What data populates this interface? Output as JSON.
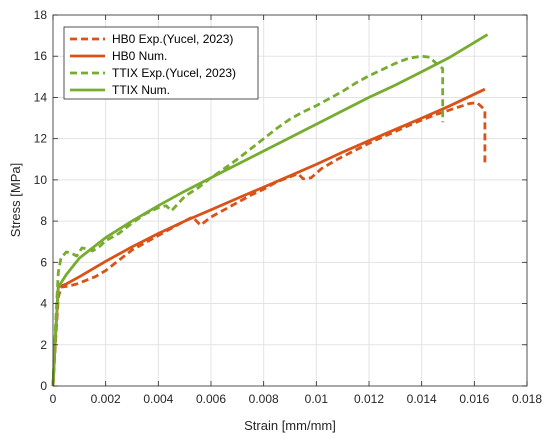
{
  "chart_data": {
    "type": "line",
    "xlabel": "Strain [mm/mm]",
    "ylabel": "Stress [MPa]",
    "xlim": [
      0,
      0.018
    ],
    "ylim": [
      0,
      18
    ],
    "xticks": [
      "0",
      "0.002",
      "0.004",
      "0.006",
      "0.008",
      "0.01",
      "0.012",
      "0.014",
      "0.016",
      "0.018"
    ],
    "yticks": [
      "0",
      "2",
      "4",
      "6",
      "8",
      "10",
      "12",
      "14",
      "16",
      "18"
    ],
    "grid": true,
    "legend_position": "top-left",
    "series": [
      {
        "name": "HB0 Exp.(Yucel, 2023)",
        "color": "#d95319",
        "style": "dashed",
        "points": [
          [
            0,
            0
          ],
          [
            0.0001,
            2.2
          ],
          [
            0.0002,
            4.3
          ],
          [
            0.0003,
            4.8
          ],
          [
            0.0006,
            4.85
          ],
          [
            0.0009,
            4.95
          ],
          [
            0.0012,
            5.1
          ],
          [
            0.0016,
            5.3
          ],
          [
            0.002,
            5.6
          ],
          [
            0.0025,
            6.1
          ],
          [
            0.003,
            6.6
          ],
          [
            0.0035,
            6.95
          ],
          [
            0.004,
            7.3
          ],
          [
            0.0045,
            7.65
          ],
          [
            0.005,
            8.0
          ],
          [
            0.0053,
            8.2
          ],
          [
            0.0056,
            7.8
          ],
          [
            0.006,
            8.2
          ],
          [
            0.0065,
            8.55
          ],
          [
            0.007,
            8.9
          ],
          [
            0.0075,
            9.25
          ],
          [
            0.008,
            9.55
          ],
          [
            0.0085,
            9.9
          ],
          [
            0.009,
            10.15
          ],
          [
            0.0093,
            10.3
          ],
          [
            0.0095,
            10.05
          ],
          [
            0.0098,
            10.1
          ],
          [
            0.0102,
            10.55
          ],
          [
            0.0108,
            11.0
          ],
          [
            0.0115,
            11.45
          ],
          [
            0.0122,
            11.9
          ],
          [
            0.013,
            12.35
          ],
          [
            0.0138,
            12.8
          ],
          [
            0.0145,
            13.15
          ],
          [
            0.0152,
            13.45
          ],
          [
            0.0158,
            13.7
          ],
          [
            0.0161,
            13.75
          ],
          [
            0.0164,
            13.4
          ],
          [
            0.0164,
            10.7
          ]
        ]
      },
      {
        "name": "HB0 Num.",
        "color": "#d95319",
        "style": "solid",
        "points": [
          [
            0,
            0
          ],
          [
            0.0001,
            2.5
          ],
          [
            0.0002,
            4.8
          ],
          [
            0.0005,
            4.95
          ],
          [
            0.001,
            5.3
          ],
          [
            0.002,
            6.05
          ],
          [
            0.003,
            6.75
          ],
          [
            0.004,
            7.4
          ],
          [
            0.005,
            8.0
          ],
          [
            0.006,
            8.55
          ],
          [
            0.007,
            9.1
          ],
          [
            0.008,
            9.65
          ],
          [
            0.009,
            10.2
          ],
          [
            0.01,
            10.75
          ],
          [
            0.011,
            11.35
          ],
          [
            0.012,
            11.9
          ],
          [
            0.013,
            12.45
          ],
          [
            0.014,
            13.0
          ],
          [
            0.015,
            13.55
          ],
          [
            0.0164,
            14.4
          ]
        ]
      },
      {
        "name": "TTIX Exp.(Yucel, 2023)",
        "color": "#77ac30",
        "style": "dashed",
        "points": [
          [
            0,
            0
          ],
          [
            0.0001,
            3.0
          ],
          [
            0.0002,
            5.5
          ],
          [
            0.0003,
            6.2
          ],
          [
            0.0005,
            6.5
          ],
          [
            0.0007,
            6.45
          ],
          [
            0.0009,
            6.3
          ],
          [
            0.0011,
            6.7
          ],
          [
            0.0013,
            6.65
          ],
          [
            0.0015,
            6.55
          ],
          [
            0.0018,
            6.8
          ],
          [
            0.002,
            7.05
          ],
          [
            0.0025,
            7.4
          ],
          [
            0.003,
            7.9
          ],
          [
            0.0035,
            8.35
          ],
          [
            0.004,
            8.65
          ],
          [
            0.0043,
            8.75
          ],
          [
            0.0045,
            8.5
          ],
          [
            0.005,
            9.2
          ],
          [
            0.0055,
            9.6
          ],
          [
            0.006,
            10.1
          ],
          [
            0.0065,
            10.55
          ],
          [
            0.007,
            11.0
          ],
          [
            0.0075,
            11.5
          ],
          [
            0.008,
            12.0
          ],
          [
            0.0085,
            12.5
          ],
          [
            0.009,
            12.95
          ],
          [
            0.0095,
            13.3
          ],
          [
            0.01,
            13.6
          ],
          [
            0.0105,
            13.95
          ],
          [
            0.011,
            14.3
          ],
          [
            0.0115,
            14.7
          ],
          [
            0.012,
            15.05
          ],
          [
            0.0125,
            15.35
          ],
          [
            0.013,
            15.65
          ],
          [
            0.0135,
            15.9
          ],
          [
            0.014,
            16.0
          ],
          [
            0.0143,
            15.95
          ],
          [
            0.0146,
            15.6
          ],
          [
            0.0148,
            15.4
          ],
          [
            0.0148,
            12.8
          ]
        ]
      },
      {
        "name": "TTIX Num.",
        "color": "#77ac30",
        "style": "solid",
        "points": [
          [
            0,
            0
          ],
          [
            0.0001,
            2.5
          ],
          [
            0.0002,
            4.8
          ],
          [
            0.0005,
            5.4
          ],
          [
            0.001,
            6.2
          ],
          [
            0.002,
            7.2
          ],
          [
            0.003,
            8.0
          ],
          [
            0.004,
            8.75
          ],
          [
            0.005,
            9.45
          ],
          [
            0.006,
            10.1
          ],
          [
            0.007,
            10.75
          ],
          [
            0.008,
            11.4
          ],
          [
            0.009,
            12.05
          ],
          [
            0.01,
            12.7
          ],
          [
            0.011,
            13.35
          ],
          [
            0.012,
            14.0
          ],
          [
            0.013,
            14.6
          ],
          [
            0.014,
            15.25
          ],
          [
            0.015,
            15.9
          ],
          [
            0.0165,
            17.05
          ]
        ]
      }
    ]
  }
}
